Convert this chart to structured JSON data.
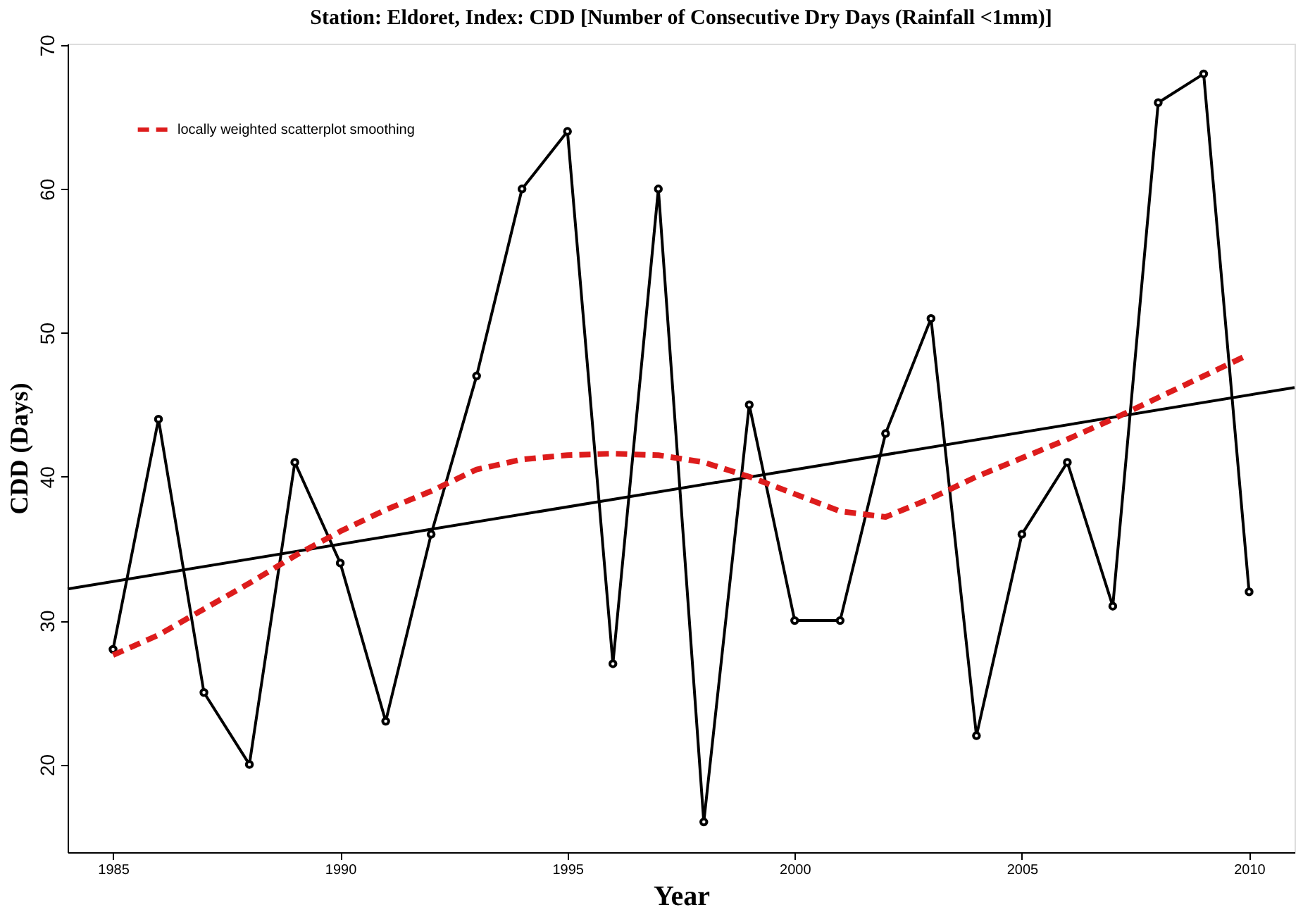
{
  "chart_data": {
    "type": "line",
    "title": "Station: Eldoret, Index: CDD [Number of Consecutive Dry Days (Rainfall <1mm)]",
    "xlabel": "Year",
    "ylabel": "CDD (Days)",
    "x": [
      1985,
      1986,
      1987,
      1988,
      1989,
      1990,
      1991,
      1992,
      1993,
      1994,
      1995,
      1996,
      1997,
      1998,
      1999,
      2000,
      2001,
      2002,
      2003,
      2004,
      2005,
      2006,
      2007,
      2008,
      2009,
      2010
    ],
    "series": [
      {
        "color": "#000000",
        "marker": "circle",
        "line_style": "solid",
        "values": [
          28,
          44,
          25,
          20,
          41,
          34,
          23,
          36,
          47,
          60,
          64,
          27,
          60,
          16,
          45,
          30,
          30,
          43,
          51,
          22,
          36,
          41,
          31,
          66,
          68,
          32
        ]
      },
      {
        "color": "#000000",
        "marker": "none",
        "line_style": "solid",
        "x": [
          1984,
          2011
        ],
        "values": [
          32.2,
          46.2
        ]
      },
      {
        "name": "locally weighted scatterplot smoothing",
        "color": "#dd1c1c",
        "marker": "none",
        "line_style": "dashed",
        "values": [
          27.6,
          29,
          30.8,
          32.6,
          34.5,
          36.2,
          37.7,
          39,
          40.5,
          41.2,
          41.5,
          41.6,
          41.5,
          41,
          40,
          38.8,
          37.6,
          37.2,
          38.5,
          40,
          41.3,
          42.6,
          44,
          45.5,
          47,
          48.5
        ]
      }
    ],
    "xlim": [
      1984,
      2011
    ],
    "ylim": [
      13.9,
      70.1
    ],
    "xticks": [
      1985,
      1990,
      1995,
      2000,
      2005,
      2010
    ],
    "yticks": [
      20,
      30,
      40,
      50,
      60,
      70
    ],
    "grid": false,
    "legend": "top left"
  }
}
